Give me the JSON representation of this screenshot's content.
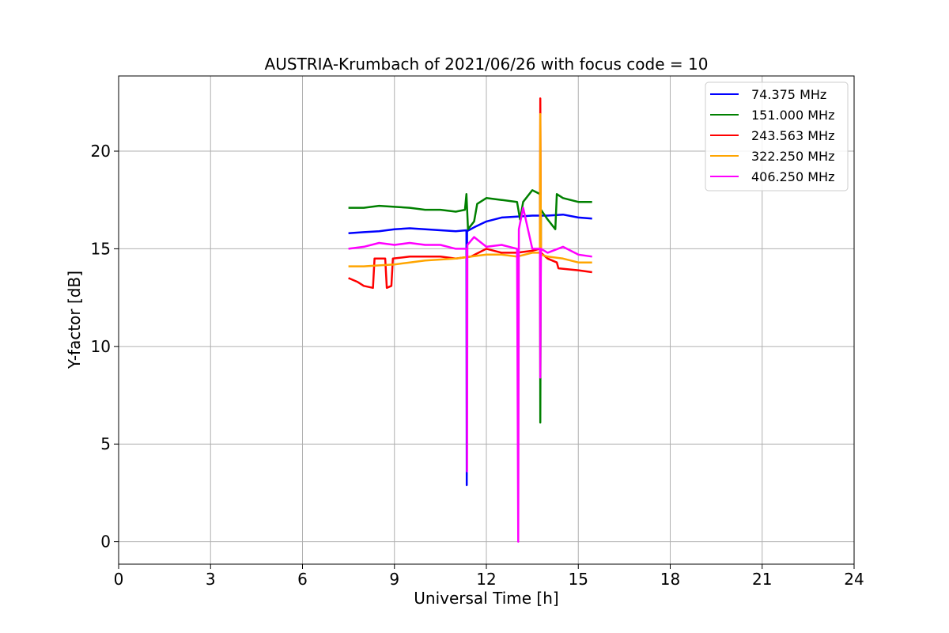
{
  "chart_data": {
    "type": "line",
    "title": "AUSTRIA-Krumbach of 2021/06/26 with focus code = 10",
    "xlabel": "Universal Time [h]",
    "ylabel": "Y-factor [dB]",
    "xlim": [
      0,
      24
    ],
    "ylim": [
      -1.15,
      23.85
    ],
    "xticks": [
      0,
      3,
      6,
      9,
      12,
      15,
      18,
      21,
      24
    ],
    "yticks": [
      0,
      5,
      10,
      15,
      20
    ],
    "grid": true,
    "legend_position": "top-right",
    "series": [
      {
        "name": " 74.375 MHz",
        "color": "#0000ff",
        "points": [
          [
            7.5,
            15.8
          ],
          [
            8.0,
            15.85
          ],
          [
            8.5,
            15.9
          ],
          [
            9.0,
            16.0
          ],
          [
            9.5,
            16.05
          ],
          [
            10.0,
            16.0
          ],
          [
            10.5,
            15.95
          ],
          [
            11.0,
            15.9
          ],
          [
            11.35,
            15.95
          ],
          [
            11.36,
            2.9
          ],
          [
            11.37,
            15.9
          ],
          [
            11.6,
            16.1
          ],
          [
            12.0,
            16.4
          ],
          [
            12.5,
            16.6
          ],
          [
            13.0,
            16.65
          ],
          [
            13.5,
            16.7
          ],
          [
            14.0,
            16.7
          ],
          [
            14.5,
            16.75
          ],
          [
            15.0,
            16.6
          ],
          [
            15.45,
            16.55
          ]
        ]
      },
      {
        "name": "151.000 MHz",
        "color": "#008000",
        "points": [
          [
            7.5,
            17.1
          ],
          [
            8.0,
            17.1
          ],
          [
            8.5,
            17.2
          ],
          [
            9.0,
            17.15
          ],
          [
            9.5,
            17.1
          ],
          [
            10.0,
            17.0
          ],
          [
            10.5,
            17.0
          ],
          [
            11.0,
            16.9
          ],
          [
            11.3,
            17.0
          ],
          [
            11.35,
            17.8
          ],
          [
            11.4,
            16.0
          ],
          [
            11.6,
            16.4
          ],
          [
            11.7,
            17.3
          ],
          [
            12.0,
            17.6
          ],
          [
            12.5,
            17.5
          ],
          [
            13.0,
            17.4
          ],
          [
            13.1,
            16.5
          ],
          [
            13.2,
            17.4
          ],
          [
            13.5,
            18.0
          ],
          [
            13.75,
            17.8
          ],
          [
            13.76,
            6.1
          ],
          [
            13.78,
            17.0
          ],
          [
            14.0,
            16.5
          ],
          [
            14.25,
            16.0
          ],
          [
            14.3,
            17.8
          ],
          [
            14.5,
            17.6
          ],
          [
            15.0,
            17.4
          ],
          [
            15.45,
            17.4
          ]
        ]
      },
      {
        "name": "243.563 MHz",
        "color": "#ff0000",
        "points": [
          [
            7.5,
            13.5
          ],
          [
            7.8,
            13.3
          ],
          [
            8.0,
            13.1
          ],
          [
            8.3,
            13.0
          ],
          [
            8.35,
            14.5
          ],
          [
            8.7,
            14.5
          ],
          [
            8.75,
            13.0
          ],
          [
            8.9,
            13.1
          ],
          [
            8.95,
            14.5
          ],
          [
            9.5,
            14.6
          ],
          [
            10.0,
            14.6
          ],
          [
            10.5,
            14.6
          ],
          [
            11.0,
            14.5
          ],
          [
            11.5,
            14.6
          ],
          [
            12.0,
            15.0
          ],
          [
            12.5,
            14.8
          ],
          [
            13.0,
            14.8
          ],
          [
            13.5,
            14.9
          ],
          [
            13.75,
            15.0
          ],
          [
            13.76,
            22.7
          ],
          [
            13.78,
            14.8
          ],
          [
            14.0,
            14.5
          ],
          [
            14.3,
            14.3
          ],
          [
            14.35,
            14.0
          ],
          [
            15.0,
            13.9
          ],
          [
            15.45,
            13.8
          ]
        ]
      },
      {
        "name": "322.250 MHz",
        "color": "#ffa500",
        "points": [
          [
            7.5,
            14.1
          ],
          [
            8.0,
            14.1
          ],
          [
            8.5,
            14.15
          ],
          [
            9.0,
            14.2
          ],
          [
            9.5,
            14.3
          ],
          [
            10.0,
            14.4
          ],
          [
            10.5,
            14.45
          ],
          [
            11.0,
            14.5
          ],
          [
            11.5,
            14.6
          ],
          [
            12.0,
            14.7
          ],
          [
            12.5,
            14.7
          ],
          [
            13.0,
            14.6
          ],
          [
            13.5,
            14.8
          ],
          [
            13.75,
            14.8
          ],
          [
            13.76,
            21.9
          ],
          [
            13.78,
            14.7
          ],
          [
            14.0,
            14.6
          ],
          [
            14.5,
            14.5
          ],
          [
            15.0,
            14.3
          ],
          [
            15.45,
            14.3
          ]
        ]
      },
      {
        "name": "406.250 MHz",
        "color": "#ff00ff",
        "points": [
          [
            7.5,
            15.0
          ],
          [
            8.0,
            15.1
          ],
          [
            8.5,
            15.3
          ],
          [
            9.0,
            15.2
          ],
          [
            9.5,
            15.3
          ],
          [
            10.0,
            15.2
          ],
          [
            10.5,
            15.2
          ],
          [
            11.0,
            15.0
          ],
          [
            11.36,
            15.0
          ],
          [
            11.37,
            3.6
          ],
          [
            11.38,
            15.2
          ],
          [
            11.6,
            15.6
          ],
          [
            12.0,
            15.1
          ],
          [
            12.5,
            15.2
          ],
          [
            13.0,
            15.0
          ],
          [
            13.04,
            0.0
          ],
          [
            13.06,
            16.0
          ],
          [
            13.2,
            17.1
          ],
          [
            13.5,
            15.0
          ],
          [
            13.75,
            15.0
          ],
          [
            13.76,
            8.4
          ],
          [
            13.78,
            15.0
          ],
          [
            14.0,
            14.8
          ],
          [
            14.5,
            15.1
          ],
          [
            15.0,
            14.7
          ],
          [
            15.45,
            14.6
          ]
        ]
      }
    ]
  }
}
